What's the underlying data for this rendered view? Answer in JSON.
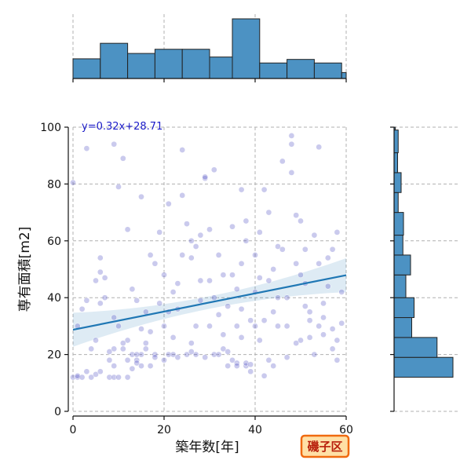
{
  "chart_data": {
    "type": "scatter",
    "xlabel": "築年数[年]",
    "ylabel": "専有面積[m2]",
    "xlim": [
      0,
      60
    ],
    "ylim": [
      0,
      100
    ],
    "x_ticks": [
      "0",
      "20",
      "40",
      "60"
    ],
    "y_ticks": [
      "0",
      "20",
      "40",
      "60",
      "80",
      "100"
    ],
    "grid": true,
    "regression": {
      "equation": "y=0.32x+28.71",
      "slope": 0.32,
      "intercept": 28.71
    },
    "badge": "磯子区",
    "marginal_x_hist": {
      "bin_edges": [
        0,
        6,
        12,
        18,
        24,
        30,
        35,
        41,
        47,
        53,
        59,
        60
      ],
      "relative_heights": [
        0.33,
        0.59,
        0.42,
        0.49,
        0.49,
        0.36,
        1.0,
        0.26,
        0.32,
        0.26,
        0.1
      ]
    },
    "marginal_y_hist": {
      "bin_edges": [
        12,
        19,
        26,
        33,
        40,
        48,
        55,
        62,
        70,
        77,
        84,
        91,
        99,
        100
      ],
      "relative_counts": [
        1.0,
        0.73,
        0.3,
        0.34,
        0.2,
        0.28,
        0.15,
        0.16,
        0.07,
        0.12,
        0.06,
        0.07,
        0.02
      ]
    },
    "series": [
      {
        "points": [
          [
            0,
            80.5
          ],
          [
            0,
            12
          ],
          [
            1,
            12
          ],
          [
            1,
            12.5
          ],
          [
            2,
            12
          ],
          [
            3,
            14
          ],
          [
            3,
            92.5
          ],
          [
            4,
            12
          ],
          [
            5,
            13
          ],
          [
            6,
            14
          ],
          [
            5,
            25
          ],
          [
            6,
            54
          ],
          [
            6,
            38
          ],
          [
            7,
            40
          ],
          [
            8,
            18
          ],
          [
            8,
            12
          ],
          [
            9,
            12
          ],
          [
            9,
            16
          ],
          [
            9,
            22
          ],
          [
            10,
            12
          ],
          [
            10,
            30
          ],
          [
            11,
            89
          ],
          [
            11,
            22
          ],
          [
            12,
            12
          ],
          [
            12,
            18
          ],
          [
            12,
            25
          ],
          [
            13,
            15
          ],
          [
            13,
            20
          ],
          [
            14,
            18
          ],
          [
            14,
            17
          ],
          [
            15,
            16
          ],
          [
            15,
            20
          ],
          [
            15,
            75.5
          ],
          [
            16,
            22
          ],
          [
            16,
            24
          ],
          [
            17,
            28
          ],
          [
            17,
            55
          ],
          [
            18,
            20
          ],
          [
            18,
            19
          ],
          [
            19,
            38
          ],
          [
            20,
            30
          ],
          [
            20,
            48
          ],
          [
            21,
            20
          ],
          [
            21,
            35
          ],
          [
            22,
            20
          ],
          [
            22,
            26
          ],
          [
            23,
            45
          ],
          [
            24,
            55
          ],
          [
            24,
            76
          ],
          [
            25,
            20
          ],
          [
            25,
            66
          ],
          [
            26,
            60
          ],
          [
            26,
            54
          ],
          [
            27,
            30
          ],
          [
            27,
            20
          ],
          [
            28,
            62
          ],
          [
            28,
            46
          ],
          [
            29,
            82
          ],
          [
            29,
            82.5
          ],
          [
            30,
            64
          ],
          [
            30,
            30
          ],
          [
            31,
            40
          ],
          [
            31,
            20
          ],
          [
            32,
            55
          ],
          [
            32,
            34
          ],
          [
            33,
            48
          ],
          [
            33,
            22
          ],
          [
            34,
            16
          ],
          [
            35,
            18
          ],
          [
            35,
            65
          ],
          [
            36,
            17
          ],
          [
            36,
            30
          ],
          [
            36,
            43
          ],
          [
            37,
            78
          ],
          [
            37,
            36
          ],
          [
            38,
            60
          ],
          [
            38,
            16
          ],
          [
            38,
            17
          ],
          [
            39,
            16.5
          ],
          [
            39,
            32
          ],
          [
            40,
            30
          ],
          [
            40,
            55
          ],
          [
            41,
            47
          ],
          [
            41,
            25
          ],
          [
            42,
            78
          ],
          [
            43,
            70
          ],
          [
            43,
            18
          ],
          [
            44,
            35
          ],
          [
            45,
            30
          ],
          [
            45,
            58
          ],
          [
            46,
            88
          ],
          [
            47,
            40
          ],
          [
            48,
            97
          ],
          [
            48,
            94
          ],
          [
            49,
            69
          ],
          [
            49,
            52
          ],
          [
            50,
            67
          ],
          [
            50,
            25
          ],
          [
            51,
            45
          ],
          [
            52,
            35
          ],
          [
            52,
            32
          ],
          [
            53,
            62
          ],
          [
            54,
            93
          ],
          [
            54,
            30
          ],
          [
            55,
            33
          ],
          [
            55,
            38
          ],
          [
            56,
            54
          ],
          [
            57,
            22
          ],
          [
            58,
            18
          ],
          [
            58,
            63
          ],
          [
            59,
            42
          ],
          [
            59,
            31
          ],
          [
            2,
            36
          ],
          [
            4,
            22
          ],
          [
            7,
            47
          ],
          [
            10,
            79
          ],
          [
            13,
            43
          ],
          [
            16,
            35
          ],
          [
            19,
            63
          ],
          [
            23,
            36
          ],
          [
            26,
            24
          ],
          [
            30,
            46
          ],
          [
            34,
            37
          ],
          [
            37,
            26
          ],
          [
            40,
            42
          ],
          [
            44,
            50
          ],
          [
            47,
            30
          ],
          [
            51,
            57
          ],
          [
            53,
            20
          ],
          [
            56,
            44
          ],
          [
            1,
            30
          ],
          [
            5,
            46
          ],
          [
            9,
            94
          ],
          [
            12,
            64
          ],
          [
            14,
            39
          ],
          [
            18,
            52
          ],
          [
            21,
            73
          ],
          [
            24,
            92
          ],
          [
            27,
            58
          ],
          [
            31,
            85
          ],
          [
            33,
            27
          ],
          [
            35,
            48
          ],
          [
            38,
            67
          ],
          [
            41,
            63
          ],
          [
            43,
            46
          ],
          [
            46,
            57
          ],
          [
            48,
            84
          ],
          [
            50,
            48
          ],
          [
            54,
            52
          ],
          [
            57,
            57
          ],
          [
            8,
            21
          ],
          [
            11,
            24
          ],
          [
            14,
            20
          ],
          [
            17,
            16
          ],
          [
            20,
            18
          ],
          [
            23,
            19
          ],
          [
            26,
            21
          ],
          [
            29,
            19
          ],
          [
            32,
            20
          ],
          [
            34,
            21
          ],
          [
            36,
            16
          ],
          [
            39,
            14
          ],
          [
            42,
            12.5
          ],
          [
            44,
            16
          ],
          [
            47,
            19
          ],
          [
            49,
            24
          ],
          [
            52,
            26
          ],
          [
            55,
            27
          ],
          [
            58,
            25
          ],
          [
            3,
            39
          ],
          [
            6,
            49
          ],
          [
            9,
            33
          ],
          [
            15,
            29
          ],
          [
            22,
            42
          ],
          [
            28,
            39
          ],
          [
            37,
            52
          ],
          [
            45,
            40
          ],
          [
            51,
            37
          ],
          [
            57,
            29
          ],
          [
            42,
            32
          ]
        ]
      }
    ]
  }
}
